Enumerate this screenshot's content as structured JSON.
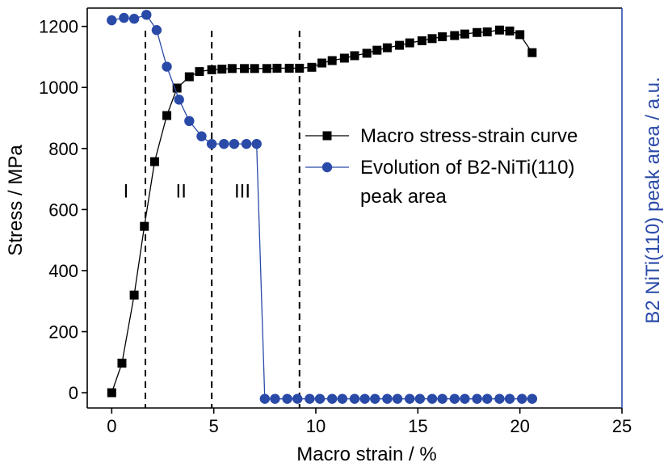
{
  "chart_data": {
    "type": "line",
    "xlabel": "Macro strain / %",
    "ylabel": "Stress / MPa",
    "y2label": "B2  NiTi(110) peak area / a.u.",
    "xlim": [
      -1.2,
      25
    ],
    "ylim": [
      -50,
      1260
    ],
    "y2lim": [
      -50,
      1260
    ],
    "x_ticks": [
      0,
      5,
      10,
      15,
      20,
      25
    ],
    "y_ticks": [
      0,
      200,
      400,
      600,
      800,
      1000,
      1200
    ],
    "grid": false,
    "legend_position": "center-right",
    "colors": {
      "stress": "#000000",
      "peak": "#2a4aa8",
      "right_axis": "#2a4aa8"
    },
    "series": [
      {
        "name": "Macro stress-strain curve",
        "axis": "left",
        "marker": "square",
        "x": [
          0,
          0.5,
          1.1,
          1.6,
          2.1,
          2.7,
          3.2,
          3.8,
          4.3,
          4.9,
          5.4,
          5.9,
          6.5,
          7.0,
          7.6,
          8.1,
          8.7,
          9.2,
          9.8,
          10.3,
          10.8,
          11.4,
          11.9,
          12.5,
          13.0,
          13.5,
          14.1,
          14.6,
          15.2,
          15.7,
          16.2,
          16.8,
          17.3,
          17.9,
          18.4,
          19.0,
          19.5,
          20.0,
          20.6
        ],
        "y": [
          0,
          97,
          320,
          545,
          757,
          908,
          998,
          1035,
          1052,
          1058,
          1060,
          1062,
          1062,
          1062,
          1062,
          1063,
          1063,
          1063,
          1066,
          1080,
          1088,
          1096,
          1104,
          1112,
          1122,
          1130,
          1138,
          1146,
          1153,
          1160,
          1166,
          1170,
          1175,
          1180,
          1182,
          1188,
          1185,
          1173,
          1114
        ]
      },
      {
        "name": "Evolution of B2-NiTi(110) peak area",
        "axis": "right",
        "marker": "circle",
        "x": [
          0,
          0.6,
          1.1,
          1.7,
          2.2,
          2.7,
          3.3,
          3.8,
          4.4,
          4.9,
          5.5,
          6.0,
          6.6,
          7.1,
          7.5,
          8.0,
          8.6,
          9.1,
          9.7,
          10.2,
          10.8,
          11.3,
          11.9,
          12.4,
          12.9,
          13.5,
          14.0,
          14.6,
          15.1,
          15.7,
          16.2,
          16.8,
          17.3,
          17.9,
          18.4,
          19.0,
          19.5,
          20.1,
          20.6
        ],
        "y": [
          1220,
          1228,
          1225,
          1238,
          1188,
          1068,
          960,
          890,
          840,
          815,
          815,
          815,
          815,
          815,
          -20,
          -20,
          -20,
          -20,
          -20,
          -20,
          -20,
          -20,
          -20,
          -20,
          -20,
          -20,
          -20,
          -20,
          -20,
          -20,
          -20,
          -20,
          -20,
          -20,
          -20,
          -20,
          -20,
          -20,
          -20
        ]
      }
    ],
    "dividers": [
      1.65,
      4.9,
      9.2
    ],
    "regions": [
      {
        "label": "I",
        "x": 0.7,
        "y": 640
      },
      {
        "label": "II",
        "x": 3.4,
        "y": 640
      },
      {
        "label": "III",
        "x": 6.4,
        "y": 640
      }
    ],
    "legend": [
      {
        "label": "Macro stress-strain curve",
        "series": 0
      },
      {
        "label": "Evolution of B2-NiTi(110)",
        "series": 1
      },
      {
        "label": "peak area",
        "series": -1
      }
    ]
  }
}
